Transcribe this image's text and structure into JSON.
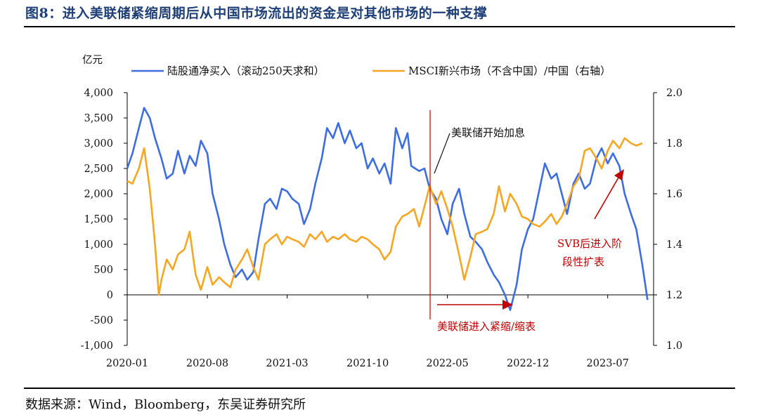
{
  "header": {
    "title": "图8：进入美联储紧缩周期后从中国市场流出的资金是对其他市场的一种支撑"
  },
  "footer": {
    "source": "数据来源：Wind，Bloomberg，东吴证券研究所"
  },
  "chart_data": {
    "type": "line",
    "ylabel_left": "亿元",
    "x_ticks": [
      "2020-01",
      "2020-08",
      "2021-03",
      "2021-10",
      "2022-05",
      "2022-12",
      "2023-07"
    ],
    "y_left_ticks": [
      "4,000",
      "3,500",
      "3,000",
      "2,500",
      "2,000",
      "1,500",
      "1,000",
      "500",
      "0",
      "-500",
      "-1,000"
    ],
    "y_right_ticks": [
      "2.0",
      "1.8",
      "1.6",
      "1.4",
      "1.2",
      "1.0"
    ],
    "y_left_range": [
      -1000,
      4000
    ],
    "y_right_range": [
      1.0,
      2.0
    ],
    "x_range": [
      "2020-01-01",
      "2023-10-31"
    ],
    "legend_position": "top",
    "series": [
      {
        "name": "陆股通净买入（滚动250天求和）",
        "axis": "left",
        "color": "#3d6de0",
        "points": [
          [
            "2020-01-01",
            2500
          ],
          [
            "2020-01-15",
            2800
          ],
          [
            "2020-02-01",
            3300
          ],
          [
            "2020-02-15",
            3700
          ],
          [
            "2020-03-01",
            3500
          ],
          [
            "2020-03-15",
            3100
          ],
          [
            "2020-04-01",
            2700
          ],
          [
            "2020-04-15",
            2300
          ],
          [
            "2020-05-01",
            2400
          ],
          [
            "2020-05-15",
            2850
          ],
          [
            "2020-06-01",
            2400
          ],
          [
            "2020-06-15",
            2750
          ],
          [
            "2020-07-01",
            2550
          ],
          [
            "2020-07-15",
            3050
          ],
          [
            "2020-08-01",
            2800
          ],
          [
            "2020-08-15",
            2000
          ],
          [
            "2020-09-01",
            1500
          ],
          [
            "2020-09-15",
            1000
          ],
          [
            "2020-10-01",
            600
          ],
          [
            "2020-10-15",
            350
          ],
          [
            "2020-11-01",
            500
          ],
          [
            "2020-11-15",
            300
          ],
          [
            "2020-12-01",
            450
          ],
          [
            "2020-12-15",
            1100
          ],
          [
            "2021-01-01",
            1800
          ],
          [
            "2021-01-15",
            1900
          ],
          [
            "2021-02-01",
            1700
          ],
          [
            "2021-02-15",
            2100
          ],
          [
            "2021-03-01",
            2050
          ],
          [
            "2021-03-15",
            1900
          ],
          [
            "2021-04-01",
            1800
          ],
          [
            "2021-04-15",
            1400
          ],
          [
            "2021-05-01",
            1700
          ],
          [
            "2021-05-15",
            2200
          ],
          [
            "2021-06-01",
            2700
          ],
          [
            "2021-06-15",
            3300
          ],
          [
            "2021-07-01",
            3100
          ],
          [
            "2021-07-15",
            3400
          ],
          [
            "2021-08-01",
            3000
          ],
          [
            "2021-08-15",
            3250
          ],
          [
            "2021-09-01",
            2900
          ],
          [
            "2021-09-15",
            3000
          ],
          [
            "2021-10-01",
            2500
          ],
          [
            "2021-10-15",
            2700
          ],
          [
            "2021-11-01",
            2400
          ],
          [
            "2021-11-15",
            2600
          ],
          [
            "2021-12-01",
            2200
          ],
          [
            "2021-12-15",
            3300
          ],
          [
            "2022-01-01",
            2900
          ],
          [
            "2022-01-15",
            3200
          ],
          [
            "2022-01-25",
            2550
          ],
          [
            "2022-02-15",
            2450
          ],
          [
            "2022-03-01",
            2500
          ],
          [
            "2022-03-15",
            2100
          ],
          [
            "2022-04-01",
            1900
          ],
          [
            "2022-04-15",
            1500
          ],
          [
            "2022-05-01",
            1200
          ],
          [
            "2022-05-15",
            1800
          ],
          [
            "2022-06-01",
            2100
          ],
          [
            "2022-06-15",
            1600
          ],
          [
            "2022-07-01",
            1150
          ],
          [
            "2022-07-15",
            1050
          ],
          [
            "2022-08-01",
            900
          ],
          [
            "2022-08-15",
            650
          ],
          [
            "2022-09-01",
            400
          ],
          [
            "2022-09-15",
            250
          ],
          [
            "2022-10-01",
            0
          ],
          [
            "2022-10-15",
            -300
          ],
          [
            "2022-11-01",
            200
          ],
          [
            "2022-11-15",
            900
          ],
          [
            "2022-12-01",
            1300
          ],
          [
            "2022-12-15",
            1500
          ],
          [
            "2023-01-01",
            2100
          ],
          [
            "2023-01-15",
            2600
          ],
          [
            "2023-02-01",
            2300
          ],
          [
            "2023-02-15",
            2400
          ],
          [
            "2023-03-01",
            2000
          ],
          [
            "2023-03-15",
            1600
          ],
          [
            "2023-04-01",
            2200
          ],
          [
            "2023-04-15",
            2400
          ],
          [
            "2023-05-01",
            2100
          ],
          [
            "2023-05-15",
            2200
          ],
          [
            "2023-06-01",
            2700
          ],
          [
            "2023-06-15",
            2900
          ],
          [
            "2023-07-01",
            2600
          ],
          [
            "2023-07-15",
            2800
          ],
          [
            "2023-08-01",
            2550
          ],
          [
            "2023-08-15",
            2000
          ],
          [
            "2023-09-01",
            1600
          ],
          [
            "2023-09-15",
            1300
          ],
          [
            "2023-10-01",
            600
          ],
          [
            "2023-10-15",
            -100
          ]
        ]
      },
      {
        "name": "MSCI新兴市场（不含中国）/中国（右轴）",
        "axis": "right",
        "color": "#f5a623",
        "points": [
          [
            "2020-01-01",
            1.65
          ],
          [
            "2020-01-15",
            1.64
          ],
          [
            "2020-02-01",
            1.7
          ],
          [
            "2020-02-15",
            1.78
          ],
          [
            "2020-03-01",
            1.62
          ],
          [
            "2020-03-15",
            1.4
          ],
          [
            "2020-03-25",
            1.2
          ],
          [
            "2020-04-01",
            1.26
          ],
          [
            "2020-04-15",
            1.34
          ],
          [
            "2020-05-01",
            1.3
          ],
          [
            "2020-05-15",
            1.36
          ],
          [
            "2020-06-01",
            1.38
          ],
          [
            "2020-06-15",
            1.45
          ],
          [
            "2020-07-01",
            1.28
          ],
          [
            "2020-07-15",
            1.22
          ],
          [
            "2020-08-01",
            1.31
          ],
          [
            "2020-08-15",
            1.24
          ],
          [
            "2020-09-01",
            1.27
          ],
          [
            "2020-09-15",
            1.25
          ],
          [
            "2020-10-01",
            1.23
          ],
          [
            "2020-10-15",
            1.3
          ],
          [
            "2020-11-01",
            1.34
          ],
          [
            "2020-11-15",
            1.38
          ],
          [
            "2020-12-01",
            1.31
          ],
          [
            "2020-12-15",
            1.26
          ],
          [
            "2021-01-01",
            1.4
          ],
          [
            "2021-01-15",
            1.42
          ],
          [
            "2021-02-01",
            1.44
          ],
          [
            "2021-02-15",
            1.4
          ],
          [
            "2021-03-01",
            1.43
          ],
          [
            "2021-03-15",
            1.42
          ],
          [
            "2021-04-01",
            1.41
          ],
          [
            "2021-04-15",
            1.39
          ],
          [
            "2021-05-01",
            1.44
          ],
          [
            "2021-05-15",
            1.42
          ],
          [
            "2021-06-01",
            1.45
          ],
          [
            "2021-06-15",
            1.41
          ],
          [
            "2021-07-01",
            1.43
          ],
          [
            "2021-07-15",
            1.42
          ],
          [
            "2021-08-01",
            1.44
          ],
          [
            "2021-08-15",
            1.42
          ],
          [
            "2021-09-01",
            1.41
          ],
          [
            "2021-09-15",
            1.43
          ],
          [
            "2021-10-01",
            1.42
          ],
          [
            "2021-10-15",
            1.4
          ],
          [
            "2021-11-01",
            1.38
          ],
          [
            "2021-11-15",
            1.34
          ],
          [
            "2021-12-01",
            1.37
          ],
          [
            "2021-12-15",
            1.47
          ],
          [
            "2022-01-01",
            1.51
          ],
          [
            "2022-01-15",
            1.52
          ],
          [
            "2022-02-01",
            1.54
          ],
          [
            "2022-02-15",
            1.47
          ],
          [
            "2022-03-01",
            1.55
          ],
          [
            "2022-03-15",
            1.63
          ],
          [
            "2022-04-01",
            1.56
          ],
          [
            "2022-04-15",
            1.61
          ],
          [
            "2022-05-01",
            1.54
          ],
          [
            "2022-05-15",
            1.47
          ],
          [
            "2022-06-01",
            1.36
          ],
          [
            "2022-06-15",
            1.26
          ],
          [
            "2022-07-01",
            1.35
          ],
          [
            "2022-07-15",
            1.44
          ],
          [
            "2022-08-01",
            1.45
          ],
          [
            "2022-08-15",
            1.46
          ],
          [
            "2022-09-01",
            1.52
          ],
          [
            "2022-09-15",
            1.63
          ],
          [
            "2022-10-01",
            1.53
          ],
          [
            "2022-10-15",
            1.6
          ],
          [
            "2022-11-01",
            1.56
          ],
          [
            "2022-11-15",
            1.51
          ],
          [
            "2022-12-01",
            1.5
          ],
          [
            "2022-12-15",
            1.48
          ],
          [
            "2023-01-01",
            1.47
          ],
          [
            "2023-01-15",
            1.49
          ],
          [
            "2023-02-01",
            1.52
          ],
          [
            "2023-02-15",
            1.48
          ],
          [
            "2023-03-01",
            1.51
          ],
          [
            "2023-03-15",
            1.56
          ],
          [
            "2023-04-01",
            1.63
          ],
          [
            "2023-04-15",
            1.66
          ],
          [
            "2023-05-01",
            1.77
          ],
          [
            "2023-05-15",
            1.78
          ],
          [
            "2023-06-01",
            1.74
          ],
          [
            "2023-06-15",
            1.7
          ],
          [
            "2023-07-01",
            1.77
          ],
          [
            "2023-07-15",
            1.81
          ],
          [
            "2023-08-01",
            1.78
          ],
          [
            "2023-08-15",
            1.82
          ],
          [
            "2023-09-01",
            1.8
          ],
          [
            "2023-09-15",
            1.79
          ],
          [
            "2023-10-01",
            1.8
          ]
        ]
      }
    ],
    "annotations": [
      {
        "id": "fed-hike",
        "text": "美联储开始加息",
        "color": "#111111",
        "date": "2022-03-16"
      },
      {
        "id": "fed-tighten",
        "text": "美联储进入紧缩/缩表",
        "color": "#c00000"
      },
      {
        "id": "svb-line1",
        "text": "SVB后进入阶",
        "color": "#c00000"
      },
      {
        "id": "svb-line2",
        "text": "段性扩表",
        "color": "#c00000"
      }
    ]
  }
}
